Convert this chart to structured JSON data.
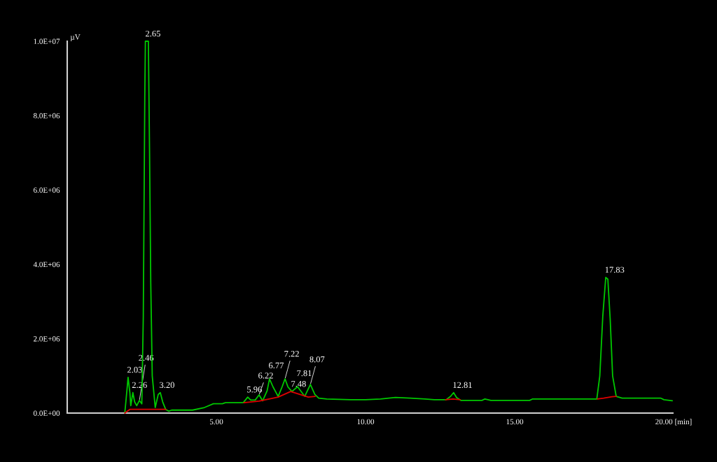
{
  "chart_data": {
    "type": "line",
    "xlabel": "[min]",
    "ylabel": "µV",
    "xlim": [
      0,
      20.3
    ],
    "xticks": [
      {
        "value": 5,
        "label": "5.00"
      },
      {
        "value": 10,
        "label": "10.00"
      },
      {
        "value": 15,
        "label": "15.00"
      },
      {
        "value": 20,
        "label": "20.00"
      }
    ],
    "ylim": [
      0,
      10000000
    ],
    "yticks": [
      {
        "value": 0,
        "label": "0.0E+00"
      },
      {
        "value": 2000000,
        "label": "2.0E+06"
      },
      {
        "value": 4000000,
        "label": "4.0E+06"
      },
      {
        "value": 6000000,
        "label": "6.0E+06"
      },
      {
        "value": 8000000,
        "label": "8.0E+06"
      },
      {
        "value": 10000000,
        "label": "1.0E+07"
      }
    ],
    "grid": false,
    "legend": false,
    "series": [
      {
        "color": "#00c800",
        "x": [
          0,
          1.93,
          2.0,
          2.04,
          2.1,
          2.13,
          2.2,
          2.26,
          2.33,
          2.42,
          2.5,
          2.55,
          2.6,
          2.62,
          2.72,
          2.76,
          2.8,
          2.85,
          2.95,
          3.05,
          3.12,
          3.2,
          3.3,
          3.4,
          3.5,
          4.2,
          4.6,
          4.9,
          5.2,
          5.3,
          5.9,
          6.05,
          6.15,
          6.3,
          6.43,
          6.55,
          6.7,
          6.78,
          6.9,
          7.07,
          7.2,
          7.3,
          7.4,
          7.53,
          7.72,
          7.96,
          8.15,
          8.3,
          8.43,
          8.7,
          9.5,
          10.0,
          10.5,
          11.0,
          11.5,
          12.0,
          12.3,
          12.7,
          12.85,
          12.95,
          13.05,
          13.2,
          13.9,
          14.0,
          14.2,
          15.5,
          15.6,
          17.75,
          17.85,
          17.95,
          18.05,
          18.12,
          18.2,
          18.28,
          18.4,
          18.6,
          19.9,
          20.0,
          20.28
        ],
        "values": [
          0,
          0,
          600000,
          960000,
          550000,
          200000,
          550000,
          300000,
          200000,
          340000,
          250000,
          2600000,
          8500000,
          10000000,
          10000000,
          7000000,
          3500000,
          1000000,
          150000,
          500000,
          550000,
          300000,
          100000,
          50000,
          80000,
          80000,
          150000,
          250000,
          250000,
          280000,
          280000,
          430000,
          350000,
          350000,
          490000,
          330000,
          600000,
          920000,
          700000,
          450000,
          700000,
          920000,
          700000,
          580000,
          710000,
          450000,
          770000,
          500000,
          400000,
          380000,
          360000,
          360000,
          380000,
          420000,
          400000,
          380000,
          360000,
          360000,
          450000,
          550000,
          420000,
          340000,
          340000,
          380000,
          340000,
          340000,
          380000,
          380000,
          1000000,
          2600000,
          3650000,
          3600000,
          2500000,
          1000000,
          450000,
          400000,
          400000,
          360000,
          330000
        ]
      },
      {
        "color": "#e00000",
        "x": [
          1.93,
          2.1,
          3.31,
          3.32,
          5.92,
          6.43,
          7.07,
          7.49,
          7.84,
          8.08,
          8.31,
          8.32,
          12.68,
          12.93,
          13.17,
          13.18,
          17.77,
          17.98,
          18.26,
          18.4
        ],
        "values": [
          0,
          100000,
          100000,
          null,
          280000,
          320000,
          430000,
          580000,
          490000,
          430000,
          450000,
          null,
          360000,
          380000,
          360000,
          null,
          380000,
          400000,
          440000,
          450000
        ]
      }
    ],
    "annotations": [
      {
        "text": "2.03",
        "x": 2.04,
        "y": 960000
      },
      {
        "text": "2.26",
        "x": 2.2,
        "y": 550000
      },
      {
        "text": "2.46",
        "x": 2.42,
        "y": 340000
      },
      {
        "text": "2.65",
        "x": 2.65,
        "y": 10000000
      },
      {
        "text": "3.20",
        "x": 3.12,
        "y": 550000
      },
      {
        "text": "5.96",
        "x": 6.05,
        "y": 430000
      },
      {
        "text": "6.22",
        "x": 6.43,
        "y": 490000
      },
      {
        "text": "6.77",
        "x": 6.78,
        "y": 920000
      },
      {
        "text": "7.22",
        "x": 7.3,
        "y": 920000
      },
      {
        "text": "7.48",
        "x": 7.53,
        "y": 580000
      },
      {
        "text": "7.81",
        "x": 7.72,
        "y": 710000
      },
      {
        "text": "8.07",
        "x": 8.15,
        "y": 770000
      },
      {
        "text": "12.81",
        "x": 12.95,
        "y": 550000
      },
      {
        "text": "17.83",
        "x": 18.05,
        "y": 3650000
      }
    ]
  }
}
